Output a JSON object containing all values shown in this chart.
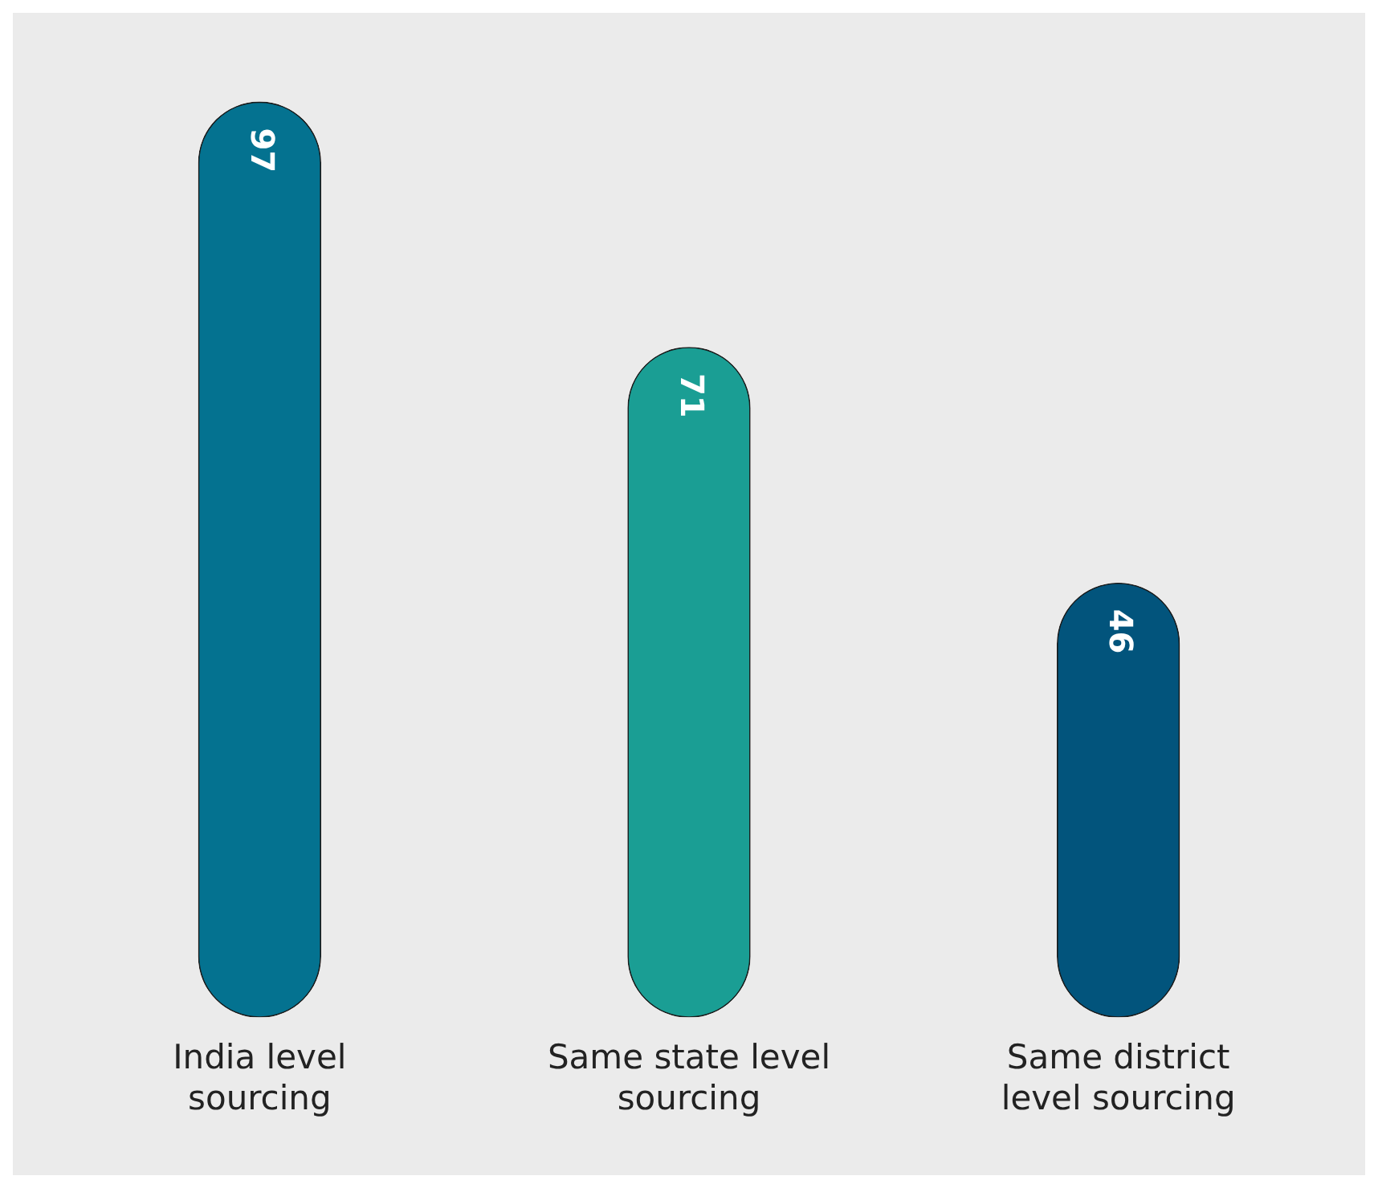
{
  "chart_data": {
    "type": "bar",
    "categories": [
      "India level sourcing",
      "Same state level sourcing",
      "Same district level sourcing"
    ],
    "values": [
      97,
      71,
      46
    ],
    "colors": [
      "#047290",
      "#1a9e94",
      "#02547c"
    ],
    "data_labels": true,
    "grid": false,
    "legend": false
  }
}
